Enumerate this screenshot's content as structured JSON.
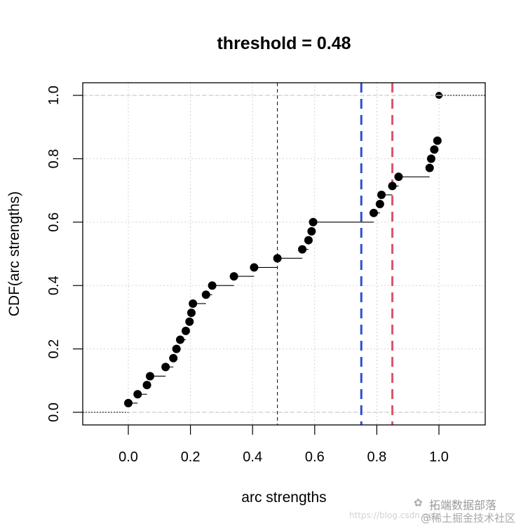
{
  "chart_data": {
    "type": "scatter",
    "subtype": "empirical-cdf-step",
    "title": "threshold =  0.48",
    "xlabel": "arc strengths",
    "ylabel": "CDF(arc strengths)",
    "xlim": [
      -0.15,
      1.15
    ],
    "ylim": [
      -0.04,
      1.04
    ],
    "xticks": [
      "0.0",
      "0.2",
      "0.4",
      "0.6",
      "0.8",
      "1.0"
    ],
    "yticks": [
      "0.0",
      "0.2",
      "0.4",
      "0.6",
      "0.8",
      "1.0"
    ],
    "grid": true,
    "legend": null,
    "points": [
      {
        "x": 0.0,
        "y": 0.029
      },
      {
        "x": 0.03,
        "y": 0.057
      },
      {
        "x": 0.06,
        "y": 0.086
      },
      {
        "x": 0.07,
        "y": 0.114
      },
      {
        "x": 0.12,
        "y": 0.143
      },
      {
        "x": 0.145,
        "y": 0.171
      },
      {
        "x": 0.155,
        "y": 0.2
      },
      {
        "x": 0.167,
        "y": 0.229
      },
      {
        "x": 0.185,
        "y": 0.257
      },
      {
        "x": 0.197,
        "y": 0.286
      },
      {
        "x": 0.203,
        "y": 0.314
      },
      {
        "x": 0.208,
        "y": 0.343
      },
      {
        "x": 0.25,
        "y": 0.371
      },
      {
        "x": 0.27,
        "y": 0.4
      },
      {
        "x": 0.34,
        "y": 0.429
      },
      {
        "x": 0.405,
        "y": 0.457
      },
      {
        "x": 0.48,
        "y": 0.486
      },
      {
        "x": 0.56,
        "y": 0.514
      },
      {
        "x": 0.58,
        "y": 0.543
      },
      {
        "x": 0.59,
        "y": 0.571
      },
      {
        "x": 0.595,
        "y": 0.6
      },
      {
        "x": 0.79,
        "y": 0.629
      },
      {
        "x": 0.81,
        "y": 0.657
      },
      {
        "x": 0.815,
        "y": 0.686
      },
      {
        "x": 0.85,
        "y": 0.714
      },
      {
        "x": 0.87,
        "y": 0.743
      },
      {
        "x": 0.97,
        "y": 0.771
      },
      {
        "x": 0.975,
        "y": 0.8
      },
      {
        "x": 0.985,
        "y": 0.829
      },
      {
        "x": 0.995,
        "y": 0.857
      },
      {
        "x": 1.0,
        "y": 1.0
      }
    ],
    "vertical_lines": [
      {
        "x": 0.48,
        "color": "#000000",
        "style": "dashed",
        "width": 1,
        "label": "threshold"
      },
      {
        "x": 0.75,
        "color": "#2E4FD0",
        "style": "dashed",
        "width": 3
      },
      {
        "x": 0.85,
        "color": "#DF536B",
        "style": "dashed",
        "width": 3
      }
    ],
    "horizontal_reference_lines": [
      {
        "y": 0.0,
        "color": "#bebebe",
        "style": "dashed"
      },
      {
        "y": 1.0,
        "color": "#bebebe",
        "style": "dashed"
      }
    ]
  },
  "watermark": {
    "url": "https://blog.csdn.net",
    "brand": "拓端数据部落",
    "sub": "@稀土掘金技术社区"
  }
}
